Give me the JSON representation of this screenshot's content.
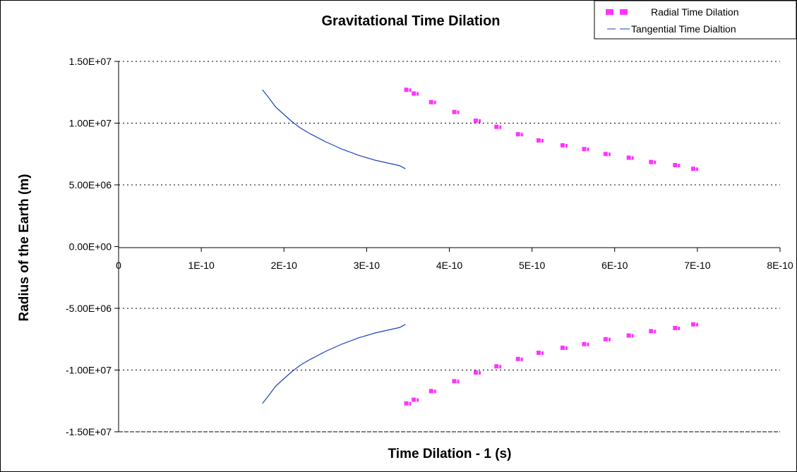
{
  "chart_data": {
    "type": "scatter",
    "title": "Gravitational Time Dilation",
    "xlabel": "Time Dilation - 1 (s)",
    "ylabel": "Radius of the Earth (m)",
    "xlim": [
      0,
      8e-10
    ],
    "ylim": [
      -15000000,
      15000000
    ],
    "x_ticks": [
      0,
      1e-10,
      2e-10,
      3e-10,
      4e-10,
      5e-10,
      6e-10,
      7e-10,
      8e-10
    ],
    "x_tick_labels": [
      "0",
      "1E-10",
      "2E-10",
      "3E-10",
      "4E-10",
      "5E-10",
      "6E-10",
      "7E-10",
      "8E-10"
    ],
    "y_ticks": [
      15000000,
      10000000,
      5000000,
      0,
      -5000000,
      -10000000,
      -15000000
    ],
    "y_tick_labels": [
      "1.50E+07",
      "1.00E+07",
      "5.00E+06",
      "0.00E+00",
      "-5.00E+06",
      "-1.00E+07",
      "-1.50E+07"
    ],
    "grid": "horizontal dotted",
    "legend_position": "top-right",
    "series": [
      {
        "name": "Radial Time Dilation",
        "color": "#ff33ff",
        "style": "dashed-markers",
        "x": [
          3.48e-10,
          3.57e-10,
          3.78e-10,
          4.06e-10,
          4.32e-10,
          4.57e-10,
          4.83e-10,
          5.08e-10,
          5.37e-10,
          5.63e-10,
          5.89e-10,
          6.17e-10,
          6.44e-10,
          6.73e-10,
          6.95e-10
        ],
        "y": [
          12700000,
          12400000,
          11700000,
          10900000,
          10200000,
          9700000,
          9100000,
          8600000,
          8200000,
          7900000,
          7500000,
          7200000,
          6850000,
          6600000,
          6300000
        ],
        "mirror_y": true
      },
      {
        "name": "Tangential Time Dialtion",
        "color": "#1f3fbf",
        "style": "line",
        "x": [
          1.74e-10,
          1.8e-10,
          1.9e-10,
          2e-10,
          2.1e-10,
          2.2e-10,
          2.3e-10,
          2.4e-10,
          2.5e-10,
          2.6e-10,
          2.7e-10,
          2.8e-10,
          2.9e-10,
          3e-10,
          3.1e-10,
          3.2e-10,
          3.3e-10,
          3.4e-10,
          3.47e-10
        ],
        "y": [
          12700000,
          12200000,
          11300000,
          10700000,
          10100000,
          9600000,
          9200000,
          8850000,
          8500000,
          8200000,
          7900000,
          7650000,
          7400000,
          7200000,
          7000000,
          6850000,
          6700000,
          6550000,
          6300000
        ],
        "mirror_y": true
      }
    ]
  }
}
